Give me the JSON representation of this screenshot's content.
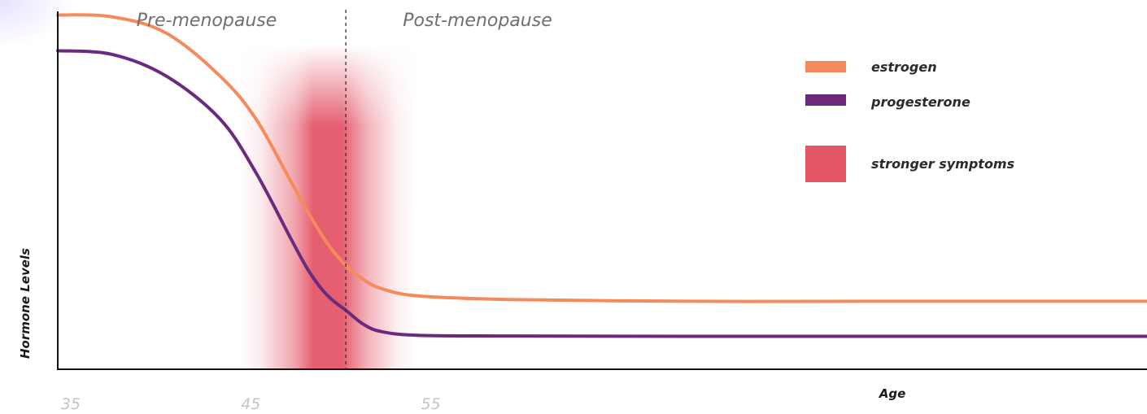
{
  "chart_data": {
    "type": "line",
    "xlabel": "Age",
    "ylabel": "Hormone Levels",
    "x_ticks": [
      "35",
      "45",
      "55"
    ],
    "phases": [
      {
        "label": "Pre-menopause"
      },
      {
        "label": "Post-menopause"
      }
    ],
    "divider_age": 51,
    "xlim": [
      35,
      95.5
    ],
    "ylim": [
      0,
      100
    ],
    "series": [
      {
        "name": "estrogen",
        "color": "#f58a5c",
        "x": [
          35,
          38,
          41,
          44,
          46,
          48,
          49,
          50,
          51,
          52,
          53,
          55,
          60,
          70,
          80,
          95.5
        ],
        "y": [
          99,
          98.5,
          94,
          82,
          70,
          52,
          43,
          35,
          29,
          25,
          22.5,
          20.5,
          19.5,
          19,
          19,
          19
        ]
      },
      {
        "name": "progesterone",
        "color": "#6b2a7e",
        "x": [
          35,
          38,
          41,
          44,
          46,
          48,
          49,
          50,
          51,
          52,
          53,
          55,
          60,
          70,
          80,
          95.5
        ],
        "y": [
          89,
          88,
          82,
          70,
          55,
          36,
          27,
          20.5,
          16.5,
          12.5,
          10.5,
          9.5,
          9.3,
          9.2,
          9.2,
          9.2
        ]
      }
    ],
    "shaded_region": {
      "label": "stronger symptoms",
      "color": "#e45668",
      "x_range": [
        45,
        55
      ],
      "peak_range": [
        49,
        52
      ]
    },
    "legend": {
      "placement": "top-right",
      "entries": [
        "estrogen",
        "progesterone",
        "stronger symptoms"
      ]
    },
    "grid": false
  }
}
